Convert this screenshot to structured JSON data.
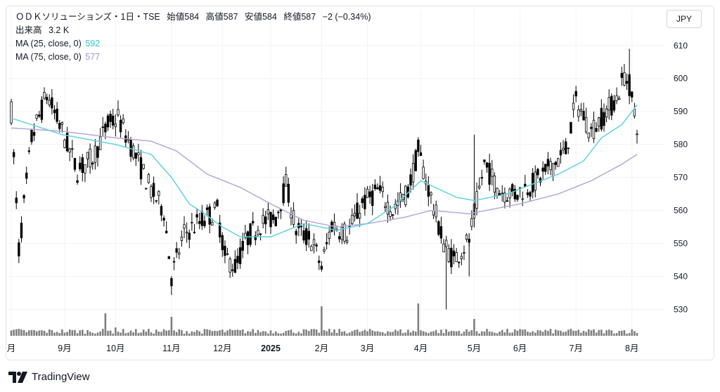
{
  "header": {
    "symbol_line": "ＯＤＫソリューションズ・1日・TSE",
    "ohlc": [
      {
        "label": "始値",
        "value": "584"
      },
      {
        "label": "高値",
        "value": "587"
      },
      {
        "label": "安値",
        "value": "584"
      },
      {
        "label": "終値",
        "value": "587"
      }
    ],
    "change": "−2 (−0.34%)",
    "volume_label": "出来高",
    "volume_value": "3.2 K",
    "ma25_label": "MA (25, close, 0)",
    "ma25_value": "592",
    "ma75_label": "MA (75, close, 0)",
    "ma75_value": "577"
  },
  "currency_button": "JPY",
  "brand": "TradingView",
  "colors": {
    "up": "#ffffff",
    "down": "#000000",
    "ma25": "#5fd3e0",
    "ma75": "#b7a7d8",
    "volume": "#7f7f7f",
    "grid": "#f0f3fa"
  },
  "chart_data": {
    "type": "candlestick",
    "ylim": [
      522,
      614
    ],
    "y_ticks": [
      530,
      540,
      550,
      560,
      570,
      580,
      590,
      600,
      610
    ],
    "x_ticks": [
      {
        "label": "月",
        "index": 0
      },
      {
        "label": "9月",
        "index": 21
      },
      {
        "label": "10月",
        "index": 41
      },
      {
        "label": "11月",
        "index": 63
      },
      {
        "label": "12月",
        "index": 83
      },
      {
        "label": "2025",
        "index": 102
      },
      {
        "label": "2月",
        "index": 122
      },
      {
        "label": "3月",
        "index": 140
      },
      {
        "label": "4月",
        "index": 161
      },
      {
        "label": "5月",
        "index": 182
      },
      {
        "label": "6月",
        "index": 200
      },
      {
        "label": "7月",
        "index": 222
      },
      {
        "label": "8月",
        "index": 244
      }
    ],
    "ma25": [
      [
        0,
        588
      ],
      [
        20,
        583
      ],
      [
        41,
        580
      ],
      [
        55,
        577
      ],
      [
        63,
        570
      ],
      [
        70,
        562
      ],
      [
        76,
        559
      ],
      [
        83,
        555
      ],
      [
        90,
        552
      ],
      [
        102,
        552
      ],
      [
        115,
        556
      ],
      [
        128,
        554
      ],
      [
        140,
        556
      ],
      [
        150,
        561
      ],
      [
        161,
        569
      ],
      [
        175,
        564
      ],
      [
        182,
        563
      ],
      [
        195,
        565
      ],
      [
        205,
        568
      ],
      [
        215,
        571
      ],
      [
        225,
        575
      ],
      [
        232,
        582
      ],
      [
        240,
        586
      ],
      [
        246,
        592
      ]
    ],
    "ma75": [
      [
        0,
        585
      ],
      [
        20,
        584
      ],
      [
        41,
        582
      ],
      [
        55,
        581
      ],
      [
        65,
        578
      ],
      [
        77,
        571
      ],
      [
        90,
        567
      ],
      [
        102,
        562
      ],
      [
        115,
        557
      ],
      [
        128,
        555
      ],
      [
        140,
        556
      ],
      [
        155,
        558
      ],
      [
        165,
        560
      ],
      [
        180,
        559
      ],
      [
        200,
        562
      ],
      [
        215,
        565
      ],
      [
        228,
        569
      ],
      [
        240,
        574
      ],
      [
        246,
        577
      ]
    ],
    "candles_summary": "daily candles, Aug 2024 to Aug 2025; last O584 H587 L584 C587",
    "n_days": 247
  }
}
